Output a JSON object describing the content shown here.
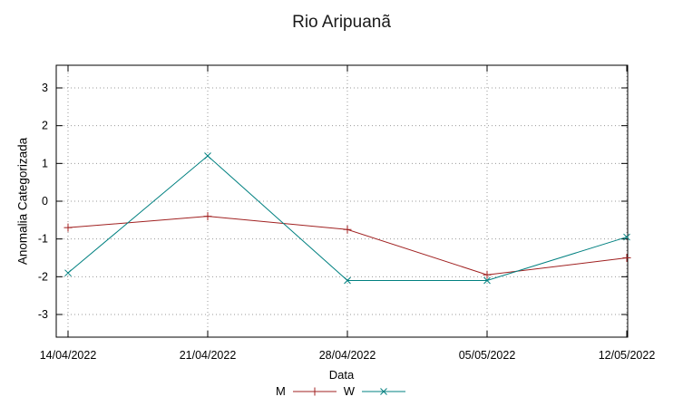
{
  "window": {
    "title": "Rio Aripuanã"
  },
  "colors": {
    "series_m": "#a02020",
    "series_w": "#008080",
    "grid": "#9a9a9a",
    "border": "#000000"
  },
  "chart_data": {
    "type": "line",
    "title": "Rio Aripuanã",
    "xlabel": "Data",
    "ylabel": "Anomalia Categorizada",
    "x": [
      "14/04/2022",
      "21/04/2022",
      "28/04/2022",
      "05/05/2022",
      "12/05/2022"
    ],
    "series": [
      {
        "name": "M",
        "marker": "plus",
        "color": "#a02020",
        "values": [
          -0.7,
          -0.4,
          -0.75,
          -1.95,
          -1.5
        ]
      },
      {
        "name": "W",
        "marker": "cross",
        "color": "#008080",
        "values": [
          -1.9,
          1.2,
          -2.1,
          -2.1,
          -0.95
        ]
      }
    ],
    "yticks": [
      -3,
      -2,
      -1,
      0,
      1,
      2,
      3
    ],
    "ylim": [
      -3.6,
      3.6
    ],
    "grid": true,
    "legend_position": "bottom-center"
  }
}
